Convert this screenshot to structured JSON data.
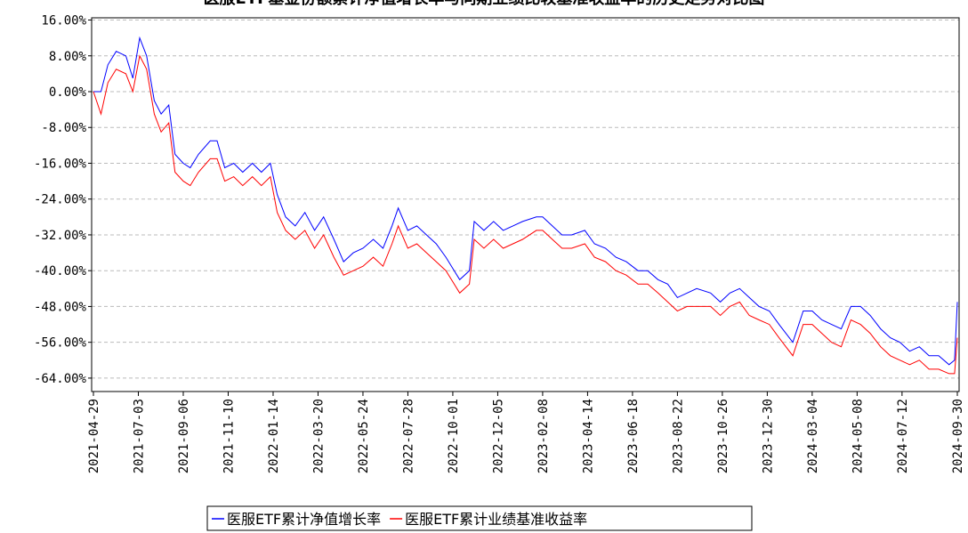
{
  "chart_data": {
    "type": "line",
    "title": "医服ETF基金份额累计净值增长率与同期业绩比较基准收益率的历史走势对比图",
    "x": [
      "2021-04-29",
      "2021-05-10",
      "2021-05-20",
      "2021-06-01",
      "2021-06-15",
      "2021-06-25",
      "2021-07-05",
      "2021-07-15",
      "2021-07-26",
      "2021-08-05",
      "2021-08-16",
      "2021-08-25",
      "2021-09-06",
      "2021-09-16",
      "2021-09-28",
      "2021-10-15",
      "2021-10-25",
      "2021-11-05",
      "2021-11-18",
      "2021-12-01",
      "2021-12-15",
      "2021-12-28",
      "2022-01-10",
      "2022-01-20",
      "2022-02-01",
      "2022-02-15",
      "2022-03-01",
      "2022-03-15",
      "2022-03-28",
      "2022-04-12",
      "2022-04-26",
      "2022-05-10",
      "2022-05-24",
      "2022-06-08",
      "2022-06-22",
      "2022-07-05",
      "2022-07-14",
      "2022-07-28",
      "2022-08-10",
      "2022-08-24",
      "2022-09-07",
      "2022-09-21",
      "2022-10-11",
      "2022-10-25",
      "2022-11-01",
      "2022-11-15",
      "2022-11-29",
      "2022-12-13",
      "2022-12-27",
      "2023-01-10",
      "2023-01-30",
      "2023-02-08",
      "2023-02-22",
      "2023-03-08",
      "2023-03-22",
      "2023-04-10",
      "2023-04-24",
      "2023-05-10",
      "2023-05-25",
      "2023-06-09",
      "2023-06-26",
      "2023-07-10",
      "2023-07-25",
      "2023-08-08",
      "2023-08-22",
      "2023-09-05",
      "2023-09-19",
      "2023-10-09",
      "2023-10-23",
      "2023-11-06",
      "2023-11-20",
      "2023-12-04",
      "2023-12-18",
      "2024-01-02",
      "2024-01-16",
      "2024-02-05",
      "2024-02-20",
      "2024-03-04",
      "2024-03-18",
      "2024-04-01",
      "2024-04-15",
      "2024-04-29",
      "2024-05-13",
      "2024-05-27",
      "2024-06-11",
      "2024-06-25",
      "2024-07-09",
      "2024-07-23",
      "2024-08-06",
      "2024-08-20",
      "2024-09-03",
      "2024-09-18",
      "2024-09-26",
      "2024-09-30"
    ],
    "series": [
      {
        "name": "医服ETF累计净值增长率",
        "color": "#0000ff",
        "values": [
          0,
          0,
          6,
          9,
          8,
          3,
          12,
          8,
          -2,
          -5,
          -3,
          -14,
          -16,
          -17,
          -14,
          -11,
          -11,
          -17,
          -16,
          -18,
          -16,
          -18,
          -16,
          -23,
          -28,
          -30,
          -27,
          -31,
          -28,
          -33,
          -38,
          -36,
          -35,
          -33,
          -35,
          -30,
          -26,
          -31,
          -30,
          -32,
          -34,
          -37,
          -42,
          -40,
          -29,
          -31,
          -29,
          -31,
          -30,
          -29,
          -28,
          -28,
          -30,
          -32,
          -32,
          -31,
          -34,
          -35,
          -37,
          -38,
          -40,
          -40,
          -42,
          -43,
          -46,
          -45,
          -44,
          -45,
          -47,
          -45,
          -44,
          -46,
          -48,
          -49,
          -52,
          -56,
          -49,
          -49,
          -51,
          -52,
          -53,
          -48,
          -48,
          -50,
          -53,
          -55,
          -56,
          -58,
          -57,
          -59,
          -59,
          -61,
          -60,
          -47
        ]
      },
      {
        "name": "医服ETF累计业绩基准收益率",
        "color": "#ff0000",
        "values": [
          0,
          -5,
          2,
          5,
          4,
          0,
          8,
          5,
          -5,
          -9,
          -7,
          -18,
          -20,
          -21,
          -18,
          -15,
          -15,
          -20,
          -19,
          -21,
          -19,
          -21,
          -19,
          -27,
          -31,
          -33,
          -31,
          -35,
          -32,
          -37,
          -41,
          -40,
          -39,
          -37,
          -39,
          -34,
          -30,
          -35,
          -34,
          -36,
          -38,
          -40,
          -45,
          -43,
          -33,
          -35,
          -33,
          -35,
          -34,
          -33,
          -31,
          -31,
          -33,
          -35,
          -35,
          -34,
          -37,
          -38,
          -40,
          -41,
          -43,
          -43,
          -45,
          -47,
          -49,
          -48,
          -48,
          -48,
          -50,
          -48,
          -47,
          -50,
          -51,
          -52,
          -55,
          -59,
          -52,
          -52,
          -54,
          -56,
          -57,
          -51,
          -52,
          -54,
          -57,
          -59,
          -60,
          -61,
          -60,
          -62,
          -62,
          -63,
          -63,
          -55
        ]
      }
    ],
    "xlim": [
      "2021-04-29",
      "2024-09-30"
    ],
    "xticks": [
      "2021-04-29",
      "2021-07-03",
      "2021-09-06",
      "2021-11-10",
      "2022-01-14",
      "2022-03-20",
      "2022-05-24",
      "2022-07-28",
      "2022-10-01",
      "2022-12-05",
      "2023-02-08",
      "2023-04-14",
      "2023-06-18",
      "2023-08-22",
      "2023-10-26",
      "2023-12-30",
      "2024-03-04",
      "2024-05-08",
      "2024-07-12",
      "2024-09-30"
    ],
    "ylim": [
      -67,
      16.5
    ],
    "yticks": [
      {
        "value": 16,
        "label": "16.00%"
      },
      {
        "value": 8,
        "label": "8.00%"
      },
      {
        "value": 0,
        "label": "0.00%"
      },
      {
        "value": -8,
        "label": "-8.00%"
      },
      {
        "value": -16,
        "label": "-16.00%"
      },
      {
        "value": -24,
        "label": "-24.00%"
      },
      {
        "value": -32,
        "label": "-32.00%"
      },
      {
        "value": -40,
        "label": "-40.00%"
      },
      {
        "value": -48,
        "label": "-48.00%"
      },
      {
        "value": -56,
        "label": "-56.00%"
      },
      {
        "value": -64,
        "label": "-64.00%"
      }
    ],
    "grid": true
  }
}
